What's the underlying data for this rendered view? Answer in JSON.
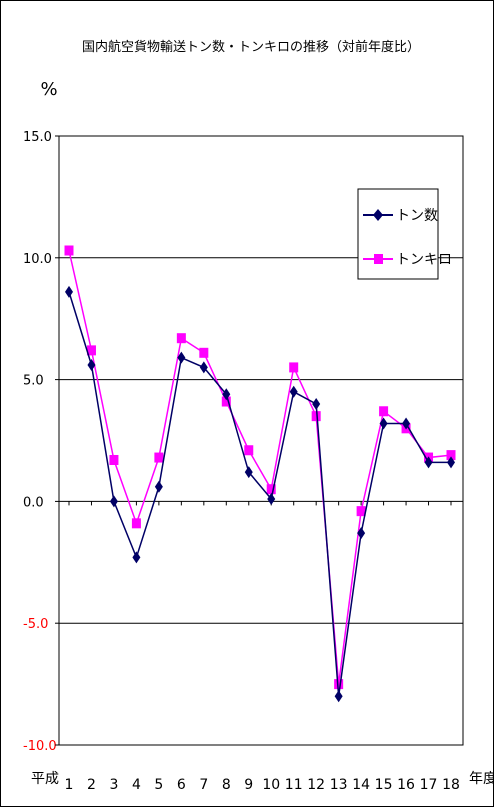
{
  "chart_data": {
    "type": "line",
    "title": "国内航空貨物輸送トン数・トンキロの推移（対前年度比）",
    "ylabel": "%",
    "x_prefix": "平成",
    "x_suffix": "年度",
    "categories": [
      "1",
      "2",
      "3",
      "4",
      "5",
      "6",
      "7",
      "8",
      "9",
      "10",
      "11",
      "12",
      "13",
      "14",
      "15",
      "16",
      "17",
      "18"
    ],
    "ylim": [
      -10,
      15
    ],
    "yticks": [
      "15.0",
      "10.0",
      "5.0",
      "0.0",
      "-5.0",
      "-10.0"
    ],
    "ytick_values": [
      15,
      10,
      5,
      0,
      -5,
      -10
    ],
    "negative_tick_color": "#ff0000",
    "gridlines": [
      10,
      5,
      0,
      -5
    ],
    "legend_position": "right",
    "series": [
      {
        "name": "トン数",
        "color": "#000066",
        "marker": "diamond",
        "values": [
          8.6,
          5.6,
          0.0,
          -2.3,
          0.6,
          5.9,
          5.5,
          4.4,
          1.2,
          0.1,
          4.5,
          4.0,
          -8.0,
          -1.3,
          3.2,
          3.2,
          1.6,
          1.6
        ]
      },
      {
        "name": "トンキロ",
        "color": "#ff00ff",
        "marker": "square",
        "values": [
          10.3,
          6.2,
          1.7,
          -0.9,
          1.8,
          6.7,
          6.1,
          4.1,
          2.1,
          0.5,
          5.5,
          3.5,
          -7.5,
          -0.4,
          3.7,
          3.0,
          1.8,
          1.9
        ]
      }
    ]
  }
}
